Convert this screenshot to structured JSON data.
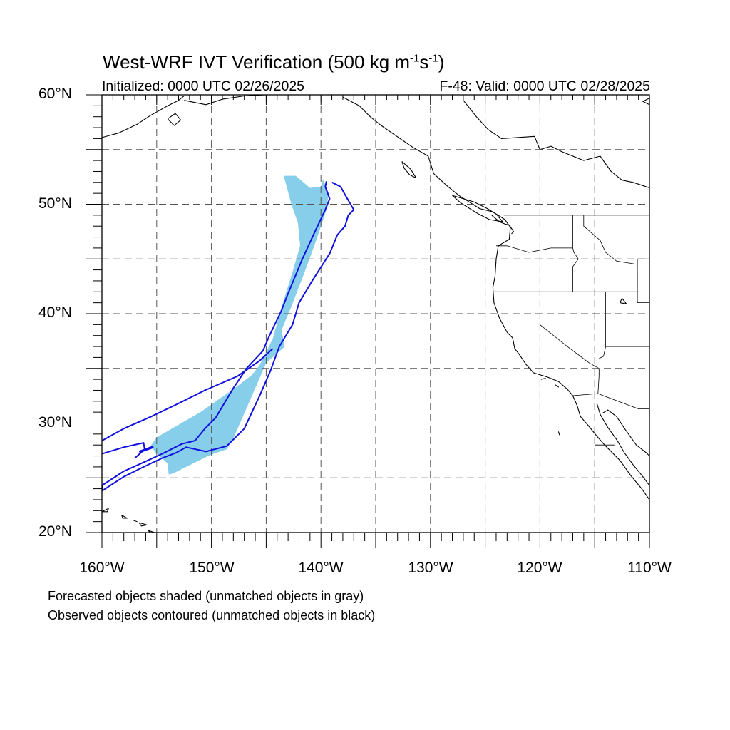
{
  "title": {
    "text": "West-WRF IVT Verification (500 kg m",
    "exp1": "-1",
    "mid": "s",
    "exp2": "-1",
    "close": ")"
  },
  "subtitle_left": "Initialized: 0000 UTC 02/26/2025",
  "subtitle_right": "F-48: Valid: 0000 UTC 02/28/2025",
  "lat_labels": [
    "60°N",
    "50°N",
    "40°N",
    "30°N",
    "20°N"
  ],
  "lon_labels": [
    "160°W",
    "150°W",
    "140°W",
    "130°W",
    "120°W",
    "110°W"
  ],
  "footer": {
    "line1": "Forecasted objects shaded (unmatched objects in gray)",
    "line2": "Observed objects contoured (unmatched objects in black)"
  },
  "map": {
    "extent": {
      "lon_min": -160,
      "lon_max": -110,
      "lat_min": 20,
      "lat_max": 60
    },
    "grid_step_deg": 5,
    "forecast_fill_color": "#87ceeb",
    "observed_contour_color": "#1010e0",
    "coast_color": "#000000",
    "forecast_object_polygon": [
      [
        -142.3,
        52.6
      ],
      [
        -141.0,
        51.5
      ],
      [
        -140.0,
        51.6
      ],
      [
        -139.8,
        52.3
      ],
      [
        -139.3,
        51.0
      ],
      [
        -139.5,
        49.5
      ],
      [
        -140.4,
        46.8
      ],
      [
        -141.6,
        43.5
      ],
      [
        -142.8,
        40.4
      ],
      [
        -143.6,
        38.5
      ],
      [
        -143.3,
        37.0
      ],
      [
        -145.0,
        35.5
      ],
      [
        -146.6,
        31.8
      ],
      [
        -148.0,
        28.6
      ],
      [
        -148.6,
        27.6
      ],
      [
        -149.8,
        27.2
      ],
      [
        -150.5,
        26.9
      ],
      [
        -153.5,
        25.4
      ],
      [
        -153.9,
        25.3
      ],
      [
        -154.0,
        26.3
      ],
      [
        -155.2,
        27.4
      ],
      [
        -155.5,
        28.0
      ],
      [
        -155.0,
        28.7
      ],
      [
        -151.0,
        31.0
      ],
      [
        -148.0,
        33.1
      ],
      [
        -146.3,
        34.4
      ],
      [
        -145.6,
        35.3
      ],
      [
        -144.4,
        37.7
      ],
      [
        -143.6,
        40.6
      ],
      [
        -142.6,
        43.8
      ],
      [
        -141.9,
        46.2
      ],
      [
        -142.1,
        48.3
      ],
      [
        -142.7,
        50.0
      ],
      [
        -143.4,
        52.6
      ]
    ],
    "observed_contour": [
      [
        -139.0,
        52.0
      ],
      [
        -138.2,
        51.6
      ],
      [
        -137.7,
        50.7
      ],
      [
        -137.0,
        49.5
      ],
      [
        -137.5,
        49.0
      ],
      [
        -137.8,
        48.0
      ],
      [
        -138.5,
        47.2
      ],
      [
        -139.2,
        45.5
      ],
      [
        -140.8,
        43.0
      ],
      [
        -142.0,
        41.0
      ],
      [
        -142.6,
        39.0
      ],
      [
        -143.8,
        37.0
      ],
      [
        -144.6,
        34.8
      ],
      [
        -145.6,
        32.5
      ],
      [
        -147.0,
        29.5
      ],
      [
        -148.6,
        27.9
      ],
      [
        -150.5,
        27.4
      ],
      [
        -152.3,
        27.8
      ],
      [
        -153.2,
        27.3
      ],
      [
        -154.5,
        26.8
      ],
      [
        -156.2,
        26.0
      ],
      [
        -158.0,
        25.1
      ],
      [
        -160.0,
        23.8
      ],
      [
        -160.0,
        24.3
      ],
      [
        -158.0,
        25.6
      ],
      [
        -156.0,
        26.5
      ],
      [
        -154.5,
        27.2
      ],
      [
        -152.7,
        28.1
      ],
      [
        -151.5,
        28.4
      ],
      [
        -150.6,
        29.5
      ],
      [
        -149.6,
        30.5
      ],
      [
        -148.0,
        33.2
      ],
      [
        -146.8,
        35.0
      ],
      [
        -145.3,
        36.6
      ],
      [
        -144.7,
        38.0
      ],
      [
        -143.6,
        40.3
      ],
      [
        -143.1,
        41.6
      ],
      [
        -141.7,
        45.0
      ],
      [
        -140.5,
        47.6
      ],
      [
        -139.6,
        49.5
      ],
      [
        -139.2,
        50.5
      ],
      [
        -139.6,
        51.6
      ],
      [
        -139.5,
        52.1
      ]
    ],
    "observed_contour_outer_edge": [
      [
        -160.0,
        28.4
      ],
      [
        -158.0,
        29.5
      ],
      [
        -155.5,
        30.6
      ],
      [
        -153.0,
        31.8
      ],
      [
        -150.6,
        33.0
      ],
      [
        -147.6,
        34.3
      ],
      [
        -145.6,
        35.7
      ],
      [
        -144.4,
        36.8
      ]
    ],
    "observed_contour_inner_stub": [
      [
        -160.0,
        27.2
      ],
      [
        -158.0,
        27.8
      ],
      [
        -156.2,
        28.2
      ],
      [
        -156.1,
        27.6
      ],
      [
        -157.0,
        26.8
      ]
    ],
    "observed_contour_blob": [
      [
        -156.5,
        27.4
      ],
      [
        -155.4,
        27.8
      ]
    ],
    "coastlines": [
      [
        [
          -127.0,
          59.5
        ],
        [
          -125.8,
          58.0
        ],
        [
          -124.7,
          56.8
        ],
        [
          -123.5,
          56.0
        ],
        [
          -120.5,
          56.2
        ],
        [
          -120.0,
          55.0
        ],
        [
          -119.0,
          55.3
        ],
        [
          -118.0,
          54.8
        ],
        [
          -116.0,
          54.0
        ],
        [
          -114.5,
          54.4
        ],
        [
          -113.5,
          53.0
        ],
        [
          -112.5,
          52.2
        ],
        [
          -111.5,
          52.0
        ],
        [
          -110.0,
          51.5
        ]
      ],
      [
        [
          -152.5,
          59.5
        ],
        [
          -150.5,
          59.1
        ],
        [
          -149.0,
          59.6
        ],
        [
          -147.0,
          59.9
        ],
        [
          -145.0,
          60.0
        ]
      ],
      [
        [
          -138.0,
          59.8
        ],
        [
          -136.5,
          59.0
        ],
        [
          -135.5,
          58.0
        ],
        [
          -134.5,
          57.2
        ],
        [
          -133.2,
          56.3
        ],
        [
          -131.6,
          55.2
        ],
        [
          -130.2,
          54.4
        ],
        [
          -129.7,
          52.8
        ],
        [
          -128.5,
          51.7
        ],
        [
          -127.4,
          50.8
        ],
        [
          -125.5,
          49.6
        ],
        [
          -124.3,
          49.3
        ],
        [
          -123.2,
          48.6
        ],
        [
          -122.7,
          47.9
        ],
        [
          -122.8,
          46.8
        ],
        [
          -123.8,
          46.2
        ],
        [
          -124.0,
          45.0
        ],
        [
          -124.1,
          43.4
        ],
        [
          -124.3,
          42.4
        ],
        [
          -124.2,
          41.0
        ],
        [
          -123.7,
          39.6
        ],
        [
          -123.0,
          38.3
        ],
        [
          -122.5,
          37.8
        ],
        [
          -122.3,
          36.8
        ],
        [
          -121.9,
          36.3
        ],
        [
          -121.3,
          35.4
        ],
        [
          -120.6,
          34.6
        ],
        [
          -119.3,
          34.2
        ],
        [
          -118.3,
          33.8
        ],
        [
          -117.5,
          33.1
        ],
        [
          -117.0,
          32.5
        ],
        [
          -116.6,
          31.6
        ],
        [
          -116.3,
          30.6
        ],
        [
          -115.6,
          29.8
        ],
        [
          -114.8,
          28.8
        ],
        [
          -114.0,
          27.9
        ],
        [
          -112.7,
          26.6
        ],
        [
          -111.7,
          25.2
        ],
        [
          -110.7,
          24.0
        ],
        [
          -110.0,
          23.0
        ]
      ],
      [
        [
          -114.8,
          31.8
        ],
        [
          -114.5,
          30.8
        ],
        [
          -113.8,
          29.6
        ],
        [
          -113.0,
          28.5
        ],
        [
          -112.3,
          27.3
        ],
        [
          -111.5,
          26.2
        ],
        [
          -110.6,
          25.1
        ],
        [
          -110.0,
          24.3
        ]
      ],
      [
        [
          -114.3,
          30.9
        ],
        [
          -113.8,
          31.2
        ],
        [
          -113.0,
          30.6
        ],
        [
          -112.2,
          29.4
        ],
        [
          -111.2,
          28.0
        ],
        [
          -110.3,
          27.3
        ],
        [
          -110.0,
          27.0
        ]
      ],
      [
        [
          -124.4,
          49.0
        ],
        [
          -123.7,
          48.4
        ],
        [
          -123.2,
          48.2
        ],
        [
          -122.8,
          48.1
        ],
        [
          -122.4,
          47.5
        ],
        [
          -122.6,
          47.3
        ]
      ],
      [
        [
          -160.0,
          56.1
        ],
        [
          -158.5,
          56.5
        ],
        [
          -156.8,
          57.3
        ],
        [
          -155.6,
          58.1
        ],
        [
          -154.0,
          59.0
        ],
        [
          -153.0,
          59.5
        ],
        [
          -152.5,
          59.9
        ]
      ],
      [
        [
          -154.0,
          57.8
        ],
        [
          -153.4,
          57.2
        ],
        [
          -152.8,
          57.7
        ],
        [
          -153.3,
          58.3
        ],
        [
          -154.0,
          57.8
        ]
      ],
      [
        [
          -132.6,
          53.9
        ],
        [
          -131.8,
          53.2
        ],
        [
          -131.3,
          52.4
        ],
        [
          -131.9,
          52.7
        ],
        [
          -132.4,
          53.3
        ],
        [
          -132.6,
          53.9
        ]
      ],
      [
        [
          -128.0,
          50.8
        ],
        [
          -126.0,
          50.2
        ],
        [
          -124.8,
          49.6
        ],
        [
          -124.0,
          49.1
        ],
        [
          -123.4,
          48.4
        ],
        [
          -124.6,
          48.6
        ],
        [
          -125.6,
          49.1
        ],
        [
          -127.2,
          50.1
        ],
        [
          -128.0,
          50.8
        ]
      ],
      [
        [
          -110.0,
          59.1
        ],
        [
          -110.6,
          59.4
        ],
        [
          -110.0,
          59.7
        ]
      ],
      [
        [
          -160.0,
          21.9
        ],
        [
          -159.4,
          22.2
        ],
        [
          -159.5,
          21.9
        ],
        [
          -160.0,
          21.9
        ]
      ],
      [
        [
          -158.2,
          21.6
        ],
        [
          -157.7,
          21.3
        ],
        [
          -158.1,
          21.3
        ],
        [
          -158.2,
          21.6
        ]
      ],
      [
        [
          -157.1,
          21.1
        ],
        [
          -156.8,
          21.0
        ],
        [
          -157.1,
          21.1
        ]
      ],
      [
        [
          -156.6,
          20.9
        ],
        [
          -155.9,
          20.7
        ],
        [
          -156.4,
          20.6
        ],
        [
          -156.6,
          20.9
        ]
      ],
      [
        [
          -155.8,
          20.2
        ],
        [
          -154.9,
          19.9
        ],
        [
          -155.1,
          19.6
        ],
        [
          -155.8,
          20.2
        ]
      ],
      [
        [
          -118.6,
          33.5
        ],
        [
          -118.3,
          33.3
        ],
        [
          -118.6,
          33.5
        ]
      ],
      [
        [
          -119.9,
          34.0
        ],
        [
          -119.5,
          34.1
        ],
        [
          -119.9,
          34.0
        ]
      ],
      [
        [
          -112.5,
          41.4
        ],
        [
          -112.1,
          40.9
        ],
        [
          -112.7,
          41.0
        ],
        [
          -112.5,
          41.4
        ]
      ],
      [
        [
          -118.2,
          28.9
        ],
        [
          -118.3,
          29.2
        ],
        [
          -118.2,
          28.9
        ]
      ]
    ],
    "boundaries": [
      [
        [
          -141.0,
          60.0
        ],
        [
          -141.0,
          59.9
        ]
      ],
      [
        [
          -123.3,
          49.0
        ],
        [
          -110.0,
          49.0
        ]
      ],
      [
        [
          -120.0,
          60.0
        ],
        [
          -120.0,
          49.0
        ]
      ],
      [
        [
          -124.0,
          46.2
        ],
        [
          -123.0,
          46.2
        ],
        [
          -121.0,
          45.6
        ],
        [
          -119.0,
          46.0
        ],
        [
          -117.0,
          46.0
        ]
      ],
      [
        [
          -117.0,
          49.0
        ],
        [
          -117.0,
          46.0
        ],
        [
          -116.9,
          45.6
        ],
        [
          -116.5,
          45.0
        ],
        [
          -117.0,
          44.3
        ],
        [
          -117.0,
          42.0
        ]
      ],
      [
        [
          -124.2,
          42.0
        ],
        [
          -111.0,
          42.0
        ]
      ],
      [
        [
          -116.0,
          49.0
        ],
        [
          -116.0,
          48.0
        ],
        [
          -114.5,
          46.7
        ],
        [
          -114.0,
          45.6
        ],
        [
          -113.0,
          44.8
        ],
        [
          -111.1,
          44.5
        ],
        [
          -111.1,
          45.0
        ],
        [
          -110.0,
          45.0
        ]
      ],
      [
        [
          -111.1,
          45.0
        ],
        [
          -111.1,
          41.0
        ],
        [
          -110.0,
          41.0
        ]
      ],
      [
        [
          -120.0,
          42.0
        ],
        [
          -120.0,
          39.0
        ],
        [
          -117.5,
          37.0
        ],
        [
          -115.5,
          35.5
        ],
        [
          -114.6,
          35.0
        ],
        [
          -114.6,
          34.3
        ],
        [
          -114.7,
          32.7
        ]
      ],
      [
        [
          -114.0,
          42.0
        ],
        [
          -114.0,
          37.0
        ],
        [
          -114.2,
          36.1
        ],
        [
          -114.6,
          35.9
        ]
      ],
      [
        [
          -114.0,
          37.0
        ],
        [
          -110.0,
          37.0
        ]
      ],
      [
        [
          -117.1,
          32.5
        ],
        [
          -114.7,
          32.7
        ],
        [
          -111.0,
          31.3
        ],
        [
          -110.0,
          31.3
        ]
      ],
      [
        [
          -115.0,
          28.0
        ],
        [
          -113.2,
          28.0
        ]
      ]
    ]
  }
}
